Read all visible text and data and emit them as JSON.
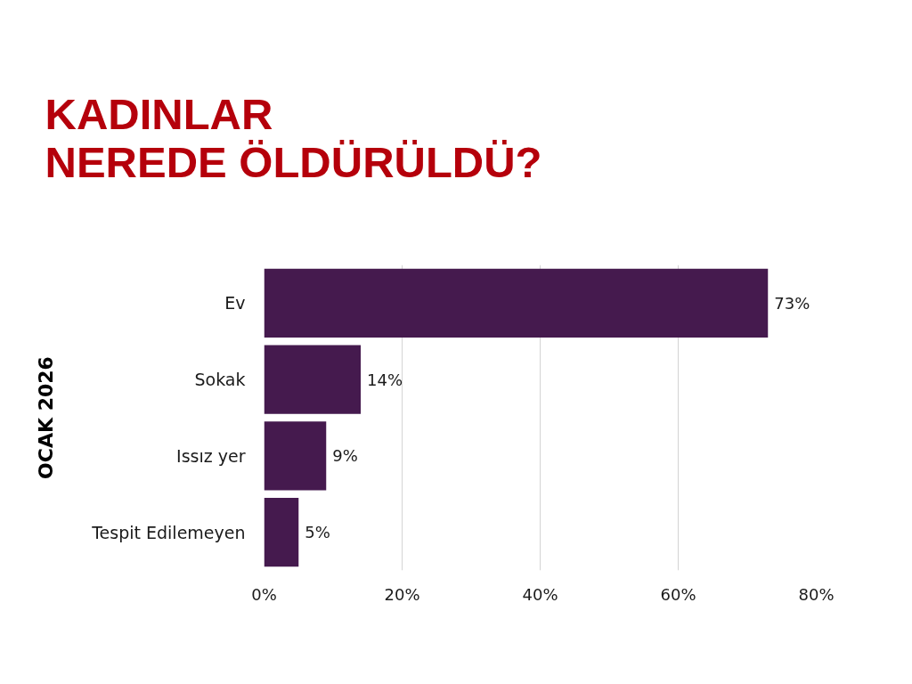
{
  "chart_data": {
    "type": "bar",
    "orientation": "horizontal",
    "title": "KADINLAR\nNEREDE ÖLDÜRÜLDÜ?",
    "ylabel": "OCAK 2026",
    "categories": [
      "Ev",
      "Sokak",
      "Issız yer",
      "Tespit Edilemeyen"
    ],
    "values": [
      73,
      14,
      9,
      5
    ],
    "color": "#451a4e",
    "value_labels": [
      "73%",
      "14%",
      "9%",
      "5%"
    ],
    "xlim": [
      0,
      80
    ],
    "xticks": [
      {
        "value": 0,
        "label": "0%"
      },
      {
        "value": 20,
        "label": "20%"
      },
      {
        "value": 40,
        "label": "40%"
      },
      {
        "value": 60,
        "label": "60%"
      },
      {
        "value": 80,
        "label": "80%"
      }
    ],
    "grid": "x"
  }
}
